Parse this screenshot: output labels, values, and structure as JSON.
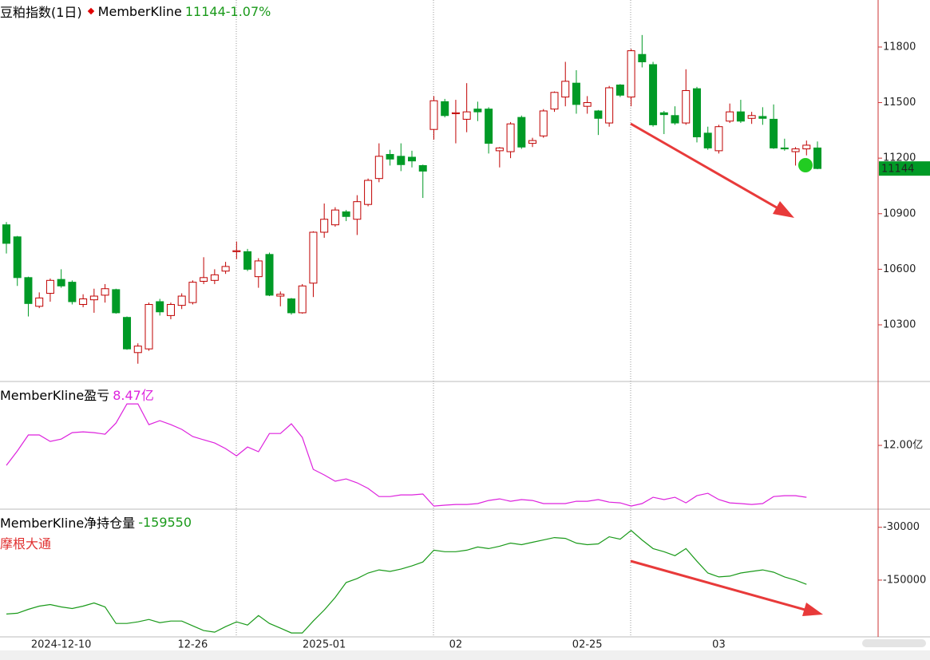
{
  "chart_data": [
    {
      "type": "candlestick",
      "title": "豆粕指数(1日)",
      "name": "MemberKline",
      "subtitle": "11144-1.07%",
      "categories": [
        null,
        null,
        null,
        null,
        null,
        "2024-12-10",
        null,
        null,
        null,
        null,
        null,
        null,
        null,
        null,
        null,
        null,
        null,
        "12-26",
        null,
        null,
        null,
        null,
        null,
        null,
        null,
        null,
        null,
        null,
        null,
        "2025-01",
        null,
        null,
        null,
        null,
        null,
        null,
        null,
        null,
        null,
        null,
        null,
        "02",
        null,
        null,
        null,
        null,
        null,
        null,
        null,
        null,
        null,
        null,
        null,
        "02-25",
        null,
        null,
        null,
        null,
        null,
        null,
        null,
        null,
        null,
        null,
        null,
        "03",
        null,
        null,
        null,
        null,
        null,
        null,
        null,
        null,
        null
      ],
      "open": [
        10840,
        10775,
        10555,
        10400,
        10470,
        10545,
        10530,
        10410,
        10435,
        10460,
        10490,
        10340,
        10150,
        10170,
        10425,
        10350,
        10405,
        10420,
        10535,
        10540,
        10590,
        10695,
        10695,
        10560,
        10680,
        10455,
        10440,
        10365,
        10525,
        10800,
        10840,
        10910,
        10870,
        10950,
        11090,
        11220,
        11210,
        11205,
        11160,
        11355,
        11505,
        11440,
        11410,
        11465,
        11465,
        11240,
        11235,
        11420,
        11280,
        11320,
        11465,
        11530,
        11605,
        11480,
        11455,
        11390,
        11595,
        11530,
        11760,
        11705,
        11445,
        11430,
        11390,
        11575,
        11335,
        11240,
        11400,
        11450,
        11415,
        11425,
        11410,
        11255,
        11235,
        11250,
        11255
      ],
      "high": [
        10855,
        10780,
        10560,
        10475,
        10550,
        10600,
        10540,
        10465,
        10495,
        10520,
        10495,
        10345,
        10200,
        10420,
        10440,
        10420,
        10470,
        10540,
        10665,
        10600,
        10640,
        10750,
        10710,
        10660,
        10690,
        10480,
        10445,
        10520,
        10805,
        10955,
        10935,
        10920,
        11000,
        11090,
        11280,
        11245,
        11280,
        11240,
        11165,
        11535,
        11520,
        11515,
        11605,
        11505,
        11475,
        11260,
        11395,
        11430,
        11310,
        11465,
        11560,
        11720,
        11675,
        11535,
        11460,
        11590,
        11600,
        11790,
        11865,
        11720,
        11455,
        11480,
        11680,
        11585,
        11370,
        11380,
        11495,
        11515,
        11450,
        11475,
        11490,
        11305,
        11260,
        11295,
        11290
      ],
      "low": [
        10685,
        10510,
        10345,
        10390,
        10425,
        10500,
        10410,
        10395,
        10365,
        10420,
        10360,
        10165,
        10090,
        10160,
        10350,
        10330,
        10385,
        10410,
        10520,
        10520,
        10575,
        10655,
        10590,
        10500,
        10455,
        10400,
        10355,
        10360,
        10450,
        10770,
        10830,
        10860,
        10785,
        10940,
        11070,
        11160,
        11130,
        11150,
        10985,
        11300,
        11420,
        11280,
        11340,
        11400,
        11225,
        11150,
        11200,
        11250,
        11260,
        11310,
        11450,
        11480,
        11440,
        11440,
        11325,
        11370,
        11530,
        11480,
        11690,
        11370,
        11330,
        11380,
        11380,
        11285,
        11245,
        11225,
        11390,
        11390,
        11385,
        11380,
        11250,
        11240,
        11160,
        11215,
        11140
      ],
      "close": [
        10740,
        10555,
        10415,
        10445,
        10540,
        10510,
        10425,
        10440,
        10455,
        10495,
        10365,
        10170,
        10185,
        10410,
        10370,
        10410,
        10455,
        10530,
        10555,
        10570,
        10615,
        10700,
        10600,
        10645,
        10460,
        10465,
        10365,
        10510,
        10800,
        10870,
        10920,
        10885,
        10965,
        11080,
        11210,
        11195,
        11165,
        11185,
        11130,
        11510,
        11430,
        11445,
        11450,
        11450,
        11280,
        11255,
        11385,
        11260,
        11295,
        11455,
        11555,
        11615,
        11490,
        11500,
        11415,
        11580,
        11540,
        11780,
        11720,
        11380,
        11435,
        11390,
        11565,
        11315,
        11255,
        11370,
        11450,
        11400,
        11430,
        11415,
        11255,
        11250,
        11250,
        11270,
        11144
      ],
      "up_color": "#c00000",
      "down_color": "#009a26",
      "ylim": [
        9994,
        12054
      ],
      "yticks": [
        11800,
        11500,
        11200,
        10900,
        10600,
        10300
      ]
    },
    {
      "type": "line",
      "annotation": "8.47亿",
      "series": [
        {
          "name": "MemberKline盈亏",
          "color": "#dd22dd",
          "values": [
            10.64,
            11.62,
            12.71,
            12.71,
            12.27,
            12.43,
            12.87,
            12.92,
            12.87,
            12.76,
            13.52,
            14.82,
            14.82,
            13.41,
            13.68,
            13.41,
            13.09,
            12.6,
            12.38,
            12.16,
            11.78,
            11.29,
            11.89,
            11.57,
            12.81,
            12.81,
            13.47,
            12.54,
            10.37,
            9.99,
            9.56,
            9.72,
            9.45,
            9.07,
            8.52,
            8.52,
            8.63,
            8.63,
            8.69,
            7.87,
            7.93,
            7.98,
            7.98,
            8.04,
            8.25,
            8.36,
            8.2,
            8.31,
            8.25,
            8.04,
            8.04,
            8.04,
            8.2,
            8.2,
            8.31,
            8.14,
            8.09,
            7.87,
            8.04,
            8.47,
            8.31,
            8.47,
            8.09,
            8.58,
            8.74,
            8.31,
            8.09,
            8.04,
            7.98,
            8.04,
            8.52,
            8.58,
            8.58,
            8.47,
            null
          ]
        }
      ],
      "ylim": [
        7.66,
        16.24
      ],
      "yticks": [
        {
          "value": 12,
          "label": "12.00亿"
        }
      ]
    },
    {
      "type": "line",
      "subtitle": "摩根大通",
      "series": [
        {
          "name": "MemberKline净持仓量",
          "color": "#1a9a1a",
          "values": [
            -227000,
            -225200,
            -216300,
            -209100,
            -205500,
            -210900,
            -214500,
            -209100,
            -201900,
            -210900,
            -248500,
            -248500,
            -244900,
            -239500,
            -246700,
            -243100,
            -243100,
            -253900,
            -264600,
            -268200,
            -255700,
            -244900,
            -252100,
            -230600,
            -248500,
            -259200,
            -270000,
            -270000,
            -243100,
            -218100,
            -189400,
            -155400,
            -146400,
            -133900,
            -126700,
            -130300,
            -124900,
            -117800,
            -108800,
            -81900,
            -85500,
            -85500,
            -81900,
            -74800,
            -78400,
            -73000,
            -65800,
            -69400,
            -64000,
            -58700,
            -53300,
            -55100,
            -65800,
            -69400,
            -67600,
            -51500,
            -56900,
            -37200,
            -58700,
            -78400,
            -85500,
            -94500,
            -78400,
            -107000,
            -133900,
            -142800,
            -141000,
            -133900,
            -130300,
            -126700,
            -132100,
            -142800,
            -150000,
            -159550,
            null
          ]
        }
      ],
      "ylim": [
        -278950,
        7612
      ],
      "yticks": [
        -30000,
        -150000
      ]
    }
  ]
}
